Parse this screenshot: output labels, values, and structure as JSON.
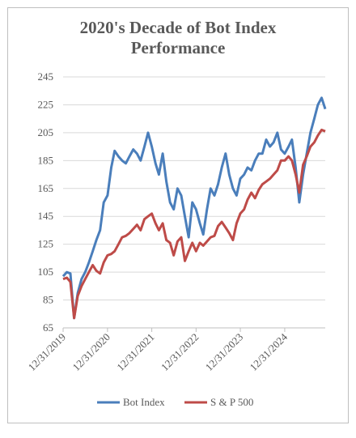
{
  "chart_data": {
    "type": "line",
    "title": "2020's Decade of Bot Index Performance",
    "x": [
      "12/31/2019",
      "1/31/2020",
      "2/29/2020",
      "3/31/2020",
      "4/30/2020",
      "5/31/2020",
      "6/30/2020",
      "7/31/2020",
      "8/31/2020",
      "9/30/2020",
      "10/31/2020",
      "11/30/2020",
      "12/31/2020",
      "1/31/2021",
      "2/28/2021",
      "3/31/2021",
      "4/30/2021",
      "5/31/2021",
      "6/30/2021",
      "7/31/2021",
      "8/31/2021",
      "9/30/2021",
      "10/31/2021",
      "11/30/2021",
      "12/31/2021",
      "1/31/2022",
      "2/28/2022",
      "3/31/2022",
      "4/30/2022",
      "5/31/2022",
      "6/30/2022",
      "7/31/2022",
      "8/31/2022",
      "9/30/2022",
      "10/31/2022",
      "11/30/2022",
      "12/31/2022",
      "1/31/2023",
      "2/28/2023",
      "3/31/2023",
      "4/30/2023",
      "5/31/2023",
      "6/30/2023",
      "7/31/2023",
      "8/31/2023",
      "9/30/2023",
      "10/31/2023",
      "11/30/2023",
      "12/31/2023",
      "1/31/2024",
      "2/29/2024",
      "3/31/2024",
      "4/30/2024",
      "5/31/2024",
      "6/30/2024",
      "7/31/2024",
      "8/31/2024",
      "9/30/2024",
      "10/31/2024",
      "11/30/2024",
      "12/31/2024",
      "1/31/2025",
      "2/28/2025",
      "3/31/2025",
      "4/30/2025",
      "5/31/2025",
      "6/30/2025",
      "7/31/2025",
      "8/31/2025",
      "9/30/2025",
      "10/31/2025",
      "11/30/2025"
    ],
    "series": [
      {
        "name": "Bot Index",
        "color": "#4a7ebb",
        "values": [
          102,
          105,
          104,
          72,
          90,
          100,
          105,
          112,
          120,
          128,
          135,
          155,
          160,
          180,
          192,
          188,
          185,
          183,
          188,
          193,
          190,
          185,
          195,
          205,
          195,
          183,
          175,
          190,
          170,
          155,
          150,
          165,
          160,
          145,
          130,
          155,
          150,
          140,
          132,
          150,
          165,
          160,
          168,
          180,
          190,
          175,
          165,
          160,
          172,
          175,
          180,
          178,
          185,
          190,
          190,
          200,
          195,
          198,
          205,
          193,
          190,
          195,
          200,
          180,
          155,
          175,
          190,
          205,
          215,
          225,
          230,
          222
        ]
      },
      {
        "name": "S & P 500",
        "color": "#be4b48",
        "values": [
          100,
          101,
          98,
          72,
          88,
          95,
          100,
          105,
          110,
          106,
          104,
          112,
          117,
          118,
          120,
          125,
          130,
          131,
          133,
          136,
          139,
          135,
          143,
          145,
          147,
          140,
          135,
          140,
          128,
          126,
          117,
          127,
          130,
          113,
          120,
          126,
          120,
          126,
          124,
          127,
          130,
          131,
          138,
          141,
          137,
          133,
          128,
          140,
          147,
          150,
          157,
          162,
          158,
          164,
          168,
          170,
          172,
          175,
          178,
          185,
          185,
          188,
          185,
          175,
          162,
          182,
          188,
          195,
          198,
          203,
          207,
          206
        ]
      }
    ],
    "xlim": [
      "12/31/2019",
      "11/30/2025"
    ],
    "xticks": [
      "12/31/2019",
      "12/31/2020",
      "12/31/2021",
      "12/31/2022",
      "12/31/2023",
      "12/31/2024"
    ],
    "ylim": [
      65,
      245
    ],
    "yticks": [
      65,
      85,
      105,
      125,
      145,
      165,
      185,
      205,
      225,
      245
    ],
    "grid": true,
    "legend": "bottom"
  }
}
